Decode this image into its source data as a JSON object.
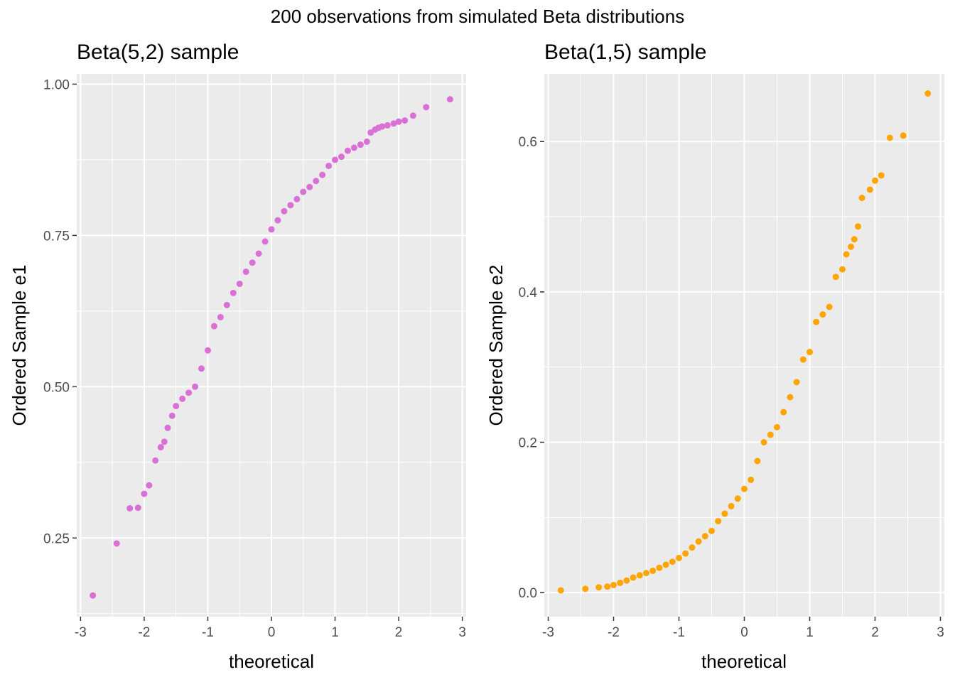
{
  "figure": {
    "title": "200 observations from simulated Beta distributions"
  },
  "chart_data": [
    {
      "type": "scatter",
      "title": "Beta(5,2) sample",
      "xlabel": "theoretical",
      "ylabel": "Ordered Sample e1",
      "xlim": [
        -3.06,
        3.06
      ],
      "ylim": [
        0.12,
        1.017
      ],
      "xticks": [
        -3,
        -2,
        -1,
        0,
        1,
        2,
        3
      ],
      "xtick_labels": [
        "-3",
        "-2",
        "-1",
        "0",
        "1",
        "2",
        "3"
      ],
      "yticks": [
        0.25,
        0.5,
        0.75,
        1.0
      ],
      "ytick_labels": [
        "0.25",
        "0.50",
        "0.75",
        "1.00"
      ],
      "point_color": "#DA70D6",
      "grid": true,
      "series": [
        {
          "x": [
            -2.807,
            -2.432,
            -2.226,
            -2.096,
            -2.0,
            -1.922,
            -1.824,
            -1.739,
            -1.683,
            -1.631,
            -1.561,
            -1.5,
            -1.4,
            -1.3,
            -1.2,
            -1.1,
            -1.0,
            -0.9,
            -0.8,
            -0.7,
            -0.6,
            -0.5,
            -0.4,
            -0.3,
            -0.2,
            -0.1,
            0.0,
            0.1,
            0.2,
            0.3,
            0.4,
            0.5,
            0.6,
            0.7,
            0.8,
            0.9,
            1.0,
            1.1,
            1.2,
            1.3,
            1.4,
            1.5,
            1.561,
            1.631,
            1.683,
            1.739,
            1.824,
            1.922,
            2.0,
            2.096,
            2.226,
            2.432,
            2.807
          ],
          "y": [
            0.155,
            0.241,
            0.299,
            0.3,
            0.323,
            0.337,
            0.378,
            0.4,
            0.409,
            0.432,
            0.452,
            0.468,
            0.48,
            0.49,
            0.5,
            0.53,
            0.56,
            0.6,
            0.615,
            0.635,
            0.655,
            0.67,
            0.69,
            0.705,
            0.72,
            0.74,
            0.76,
            0.775,
            0.79,
            0.8,
            0.81,
            0.822,
            0.83,
            0.84,
            0.85,
            0.865,
            0.875,
            0.88,
            0.89,
            0.895,
            0.9,
            0.905,
            0.92,
            0.925,
            0.928,
            0.93,
            0.932,
            0.935,
            0.938,
            0.94,
            0.948,
            0.962,
            0.975
          ]
        }
      ]
    },
    {
      "type": "scatter",
      "title": "Beta(1,5) sample",
      "xlabel": "theoretical",
      "ylabel": "Ordered Sample e2",
      "xlim": [
        -3.06,
        3.06
      ],
      "ylim": [
        -0.032,
        0.69
      ],
      "xticks": [
        -3,
        -2,
        -1,
        0,
        1,
        2,
        3
      ],
      "xtick_labels": [
        "-3",
        "-2",
        "-1",
        "0",
        "1",
        "2",
        "3"
      ],
      "yticks": [
        0.0,
        0.2,
        0.4,
        0.6
      ],
      "ytick_labels": [
        "0.0",
        "0.2",
        "0.4",
        "0.6"
      ],
      "point_color": "#FFA500",
      "grid": true,
      "series": [
        {
          "x": [
            -2.807,
            -2.432,
            -2.226,
            -2.096,
            -2.0,
            -1.9,
            -1.8,
            -1.7,
            -1.6,
            -1.5,
            -1.4,
            -1.3,
            -1.2,
            -1.1,
            -1.0,
            -0.9,
            -0.8,
            -0.7,
            -0.6,
            -0.5,
            -0.4,
            -0.3,
            -0.2,
            -0.1,
            0.0,
            0.1,
            0.2,
            0.3,
            0.4,
            0.5,
            0.6,
            0.7,
            0.8,
            0.9,
            1.0,
            1.1,
            1.2,
            1.3,
            1.4,
            1.5,
            1.561,
            1.631,
            1.683,
            1.739,
            1.8,
            1.922,
            2.0,
            2.096,
            2.226,
            2.432,
            2.807
          ],
          "y": [
            0.003,
            0.005,
            0.007,
            0.008,
            0.01,
            0.013,
            0.016,
            0.02,
            0.023,
            0.026,
            0.029,
            0.033,
            0.037,
            0.041,
            0.046,
            0.052,
            0.06,
            0.068,
            0.075,
            0.082,
            0.095,
            0.105,
            0.115,
            0.125,
            0.138,
            0.15,
            0.175,
            0.2,
            0.21,
            0.22,
            0.24,
            0.26,
            0.28,
            0.31,
            0.32,
            0.36,
            0.37,
            0.38,
            0.42,
            0.43,
            0.45,
            0.46,
            0.47,
            0.487,
            0.525,
            0.536,
            0.548,
            0.555,
            0.605,
            0.608,
            0.664
          ]
        }
      ]
    }
  ]
}
